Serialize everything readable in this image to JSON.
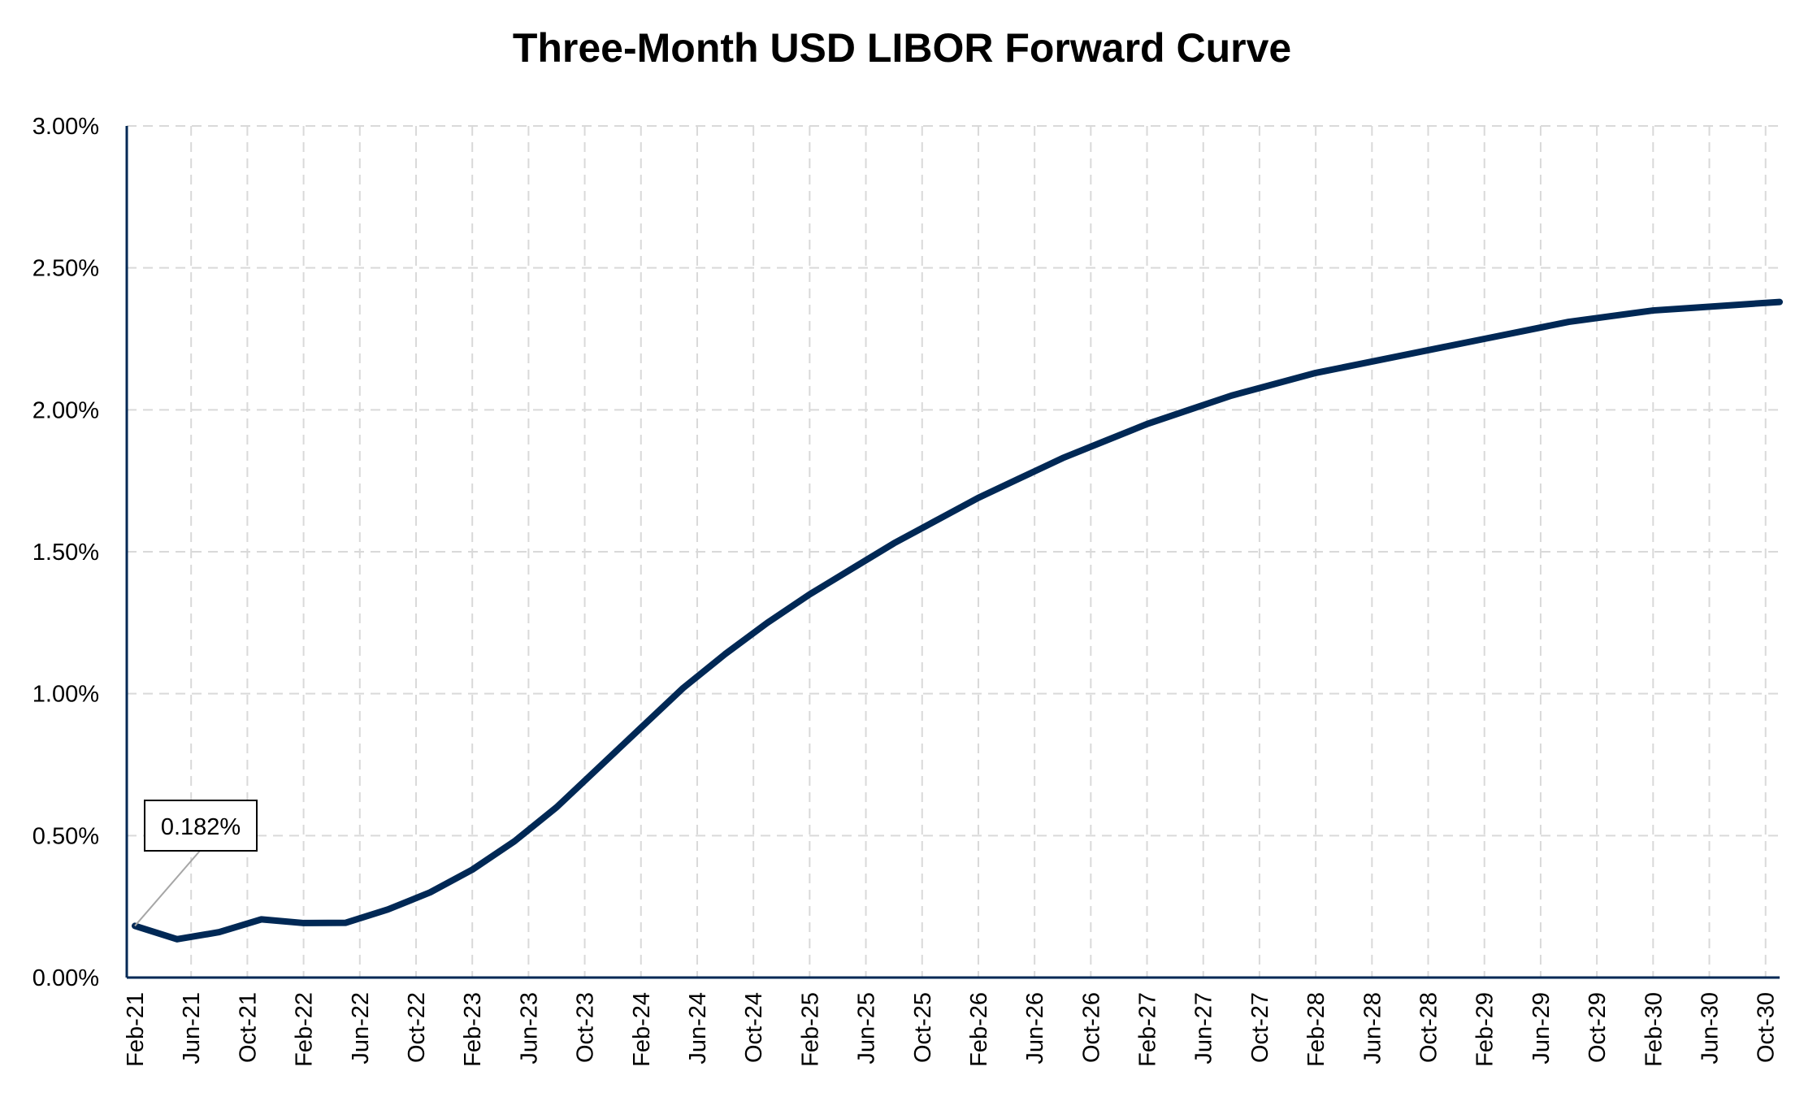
{
  "chart_data": {
    "type": "line",
    "title": "Three-Month USD LIBOR Forward Curve",
    "xlabel": "",
    "ylabel": "",
    "ylim": [
      0,
      0.03
    ],
    "y_ticks": [
      "0.00%",
      "0.50%",
      "1.00%",
      "1.50%",
      "2.00%",
      "2.50%",
      "3.00%"
    ],
    "y_tick_values": [
      0,
      0.005,
      0.01,
      0.015,
      0.02,
      0.025,
      0.03
    ],
    "x_ticks": [
      "Feb-21",
      "Jun-21",
      "Oct-21",
      "Feb-22",
      "Jun-22",
      "Oct-22",
      "Feb-23",
      "Jun-23",
      "Oct-23",
      "Feb-24",
      "Jun-24",
      "Oct-24",
      "Feb-25",
      "Jun-25",
      "Oct-25",
      "Feb-26",
      "Jun-26",
      "Oct-26",
      "Feb-27",
      "Jun-27",
      "Oct-27",
      "Feb-28",
      "Jun-28",
      "Oct-28",
      "Feb-29",
      "Jun-29",
      "Oct-29",
      "Feb-30",
      "Jun-30",
      "Oct-30"
    ],
    "grid": true,
    "line_color": "#002855",
    "series": [
      {
        "x": [
          "Feb-21",
          "May-21",
          "Aug-21",
          "Nov-21",
          "Feb-22",
          "May-22",
          "Aug-22",
          "Nov-22",
          "Feb-23",
          "May-23",
          "Aug-23",
          "Nov-23",
          "Feb-24",
          "May-24",
          "Aug-24",
          "Nov-24",
          "Feb-25",
          "May-25",
          "Aug-25",
          "Nov-25",
          "Feb-26",
          "May-26",
          "Aug-26",
          "Nov-26",
          "Feb-27",
          "May-27",
          "Aug-27",
          "Nov-27",
          "Feb-28",
          "May-28",
          "Aug-28",
          "Nov-28",
          "Feb-29",
          "May-29",
          "Aug-29",
          "Nov-29",
          "Feb-30",
          "May-30",
          "Aug-30",
          "Nov-30"
        ],
        "values": [
          0.00182,
          0.00135,
          0.0016,
          0.00205,
          0.00192,
          0.00193,
          0.0024,
          0.003,
          0.0038,
          0.0048,
          0.006,
          0.0074,
          0.0088,
          0.0102,
          0.0114,
          0.0125,
          0.0135,
          0.0144,
          0.0153,
          0.0161,
          0.0169,
          0.0176,
          0.0183,
          0.0189,
          0.0195,
          0.02,
          0.0205,
          0.0209,
          0.0213,
          0.0216,
          0.0219,
          0.0222,
          0.0225,
          0.0228,
          0.0231,
          0.0233,
          0.0235,
          0.0236,
          0.0237,
          0.0238
        ]
      }
    ],
    "annotation": {
      "text": "0.182%"
    }
  }
}
